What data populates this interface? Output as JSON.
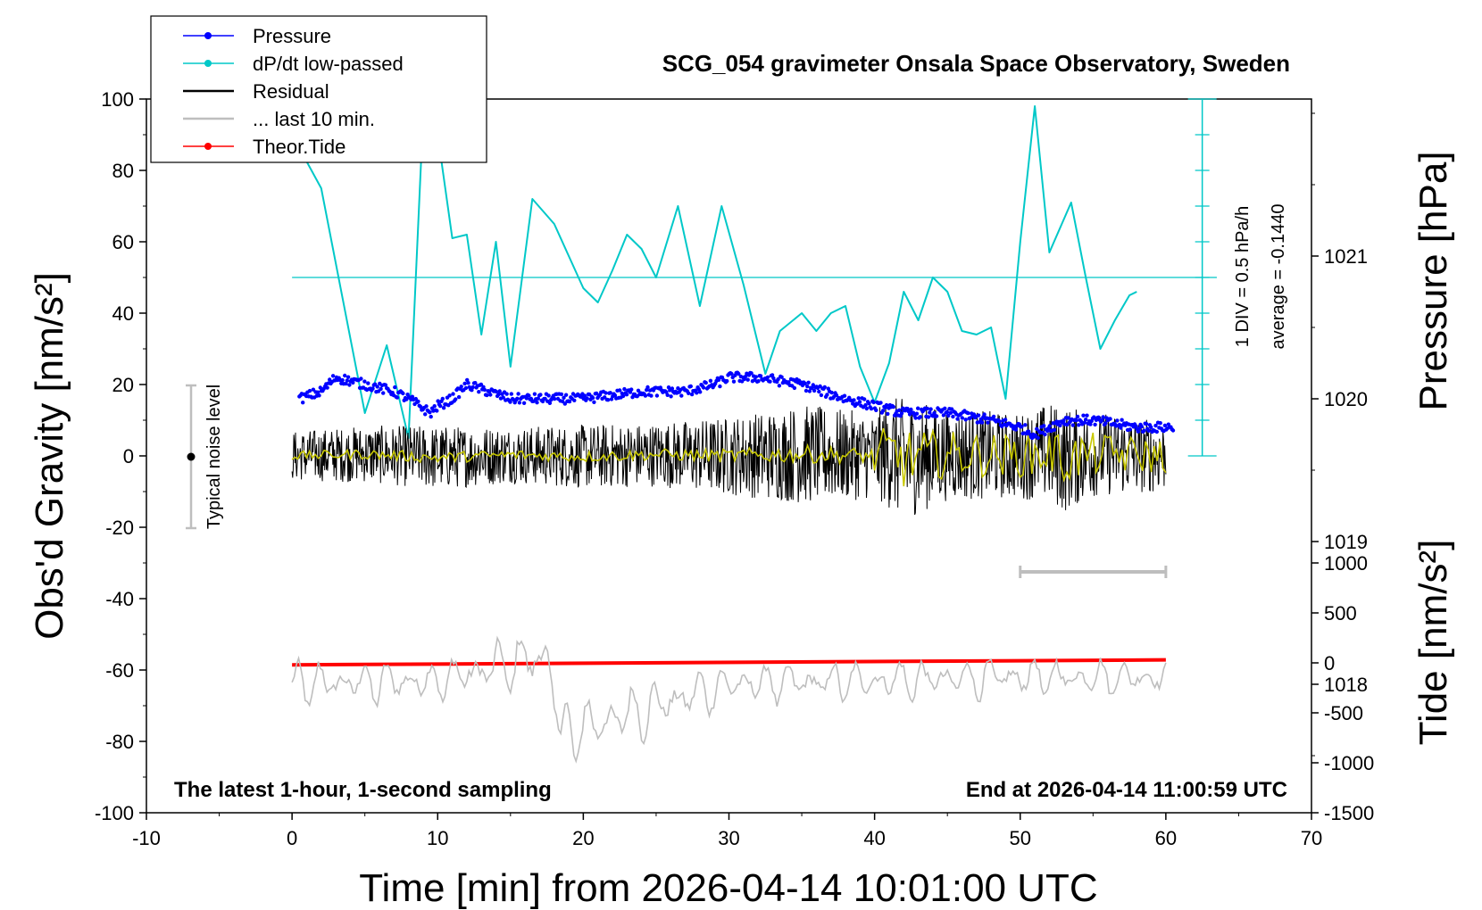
{
  "chart_data": {
    "type": "line",
    "title": "SCG_054 gravimeter Onsala Space Observatory, Sweden",
    "xlabel": "Time [min] from 2026-04-14 10:01:00 UTC",
    "ylabel_left": "Obs'd Gravity [nm/s²]",
    "ylabel_right_pressure": "Pressure [hPa]",
    "ylabel_right_tide": "Tide [nm/s²]",
    "xlim": [
      -10,
      70
    ],
    "ylim_left": [
      -100,
      100
    ],
    "pressure_range_hpa": [
      1017.1,
      1022.1
    ],
    "tide_range": [
      -1500,
      1500
    ],
    "x_ticks": [
      "-10",
      "0",
      "10",
      "20",
      "30",
      "40",
      "50",
      "60",
      "70"
    ],
    "y_ticks_left": [
      "-100",
      "-80",
      "-60",
      "-40",
      "-20",
      "0",
      "20",
      "40",
      "60",
      "80",
      "100"
    ],
    "y_ticks_pressure": [
      "1018",
      "1019",
      "1020",
      "1021"
    ],
    "y_ticks_tide": [
      "-1500",
      "-1000",
      "-500",
      "0",
      "500",
      "1000"
    ],
    "dpdt_scale_label": "1 DIV = 0.5 hPa/h",
    "dpdt_average_label": "average = -0.1440",
    "noise_label": "Typical noise level",
    "footer_left": "The latest 1-hour, 1-second sampling",
    "footer_right": "End at 2026-04-14 11:00:59 UTC",
    "legend": [
      {
        "label": "Pressure",
        "color": "#0000ff",
        "marker": "dot"
      },
      {
        "label": "dP/dt low-passed",
        "color": "#00c8c8",
        "marker": "dot"
      },
      {
        "label": "Residual",
        "color": "#000000",
        "marker": "line"
      },
      {
        "label": "... last 10 min.",
        "color": "#bebebe",
        "marker": "line"
      },
      {
        "label": "Theor.Tide",
        "color": "#ff0000",
        "marker": "dot"
      }
    ],
    "last10_bar_x": [
      50,
      60
    ],
    "series": [
      {
        "name": "Pressure",
        "axis": "pressure_hpa",
        "x": [
          0.5,
          2,
          3,
          5,
          7,
          8,
          9.5,
          10,
          11,
          12,
          15,
          18,
          20,
          24,
          27,
          29,
          30,
          32,
          35,
          38,
          40,
          42,
          45,
          48,
          50,
          51,
          53,
          55,
          58,
          60.5
        ],
        "y": [
          1020.0,
          1020.05,
          1020.15,
          1020.1,
          1020.05,
          1020.0,
          1019.9,
          1019.95,
          1020.0,
          1020.1,
          1020.0,
          1020.0,
          1020.0,
          1020.05,
          1020.05,
          1020.1,
          1020.15,
          1020.15,
          1020.1,
          1020.0,
          1019.95,
          1019.9,
          1019.9,
          1019.85,
          1019.8,
          1019.75,
          1019.85,
          1019.85,
          1019.8,
          1019.8
        ]
      },
      {
        "name": "dP/dt low-passed",
        "axis": "left",
        "x": [
          0,
          2,
          5,
          6.5,
          8,
          9,
          10,
          11,
          12,
          13,
          14,
          15,
          16.5,
          18,
          19,
          20,
          21,
          22,
          23,
          24,
          25,
          26.5,
          28,
          29.5,
          31,
          32.5,
          33.5,
          35,
          36,
          37,
          38,
          39,
          40,
          41,
          42,
          43,
          44,
          45,
          46,
          47,
          48,
          49,
          50,
          51,
          52,
          53.5,
          54.5,
          55.5,
          56.5,
          57.5,
          58
        ],
        "y": [
          90,
          75,
          12,
          31,
          5,
          95,
          90,
          61,
          62,
          34,
          60,
          25,
          72,
          65,
          56,
          47,
          43,
          52,
          62,
          58,
          50,
          70,
          42,
          70,
          48,
          23,
          35,
          40,
          35,
          40,
          42,
          25,
          15,
          26,
          46,
          38,
          50,
          46,
          35,
          34,
          36,
          16,
          60,
          98,
          57,
          71,
          50,
          30,
          38,
          45,
          46
        ]
      },
      {
        "name": "Residual",
        "axis": "left",
        "x": [
          0,
          5,
          10,
          15,
          20,
          25,
          30,
          35,
          40,
          41,
          42,
          45,
          50,
          52,
          53,
          55,
          60
        ],
        "y": [
          0,
          0.5,
          -0.5,
          0.3,
          -0.2,
          0.4,
          0,
          0.5,
          0,
          1,
          -1,
          0.5,
          0,
          1,
          -1,
          0.5,
          0
        ],
        "amplitude": [
          7,
          8,
          9,
          8,
          9,
          9,
          11,
          14,
          12,
          16,
          17,
          13,
          12,
          14,
          15,
          12,
          10
        ]
      },
      {
        "name": "... last 10 min.",
        "axis": "left",
        "x": [
          0,
          10,
          17.5,
          18.5,
          30,
          40,
          50,
          60
        ],
        "y": [
          -64,
          -63,
          -56,
          -78,
          -64,
          -63,
          -62,
          -62
        ],
        "amplitude": [
          7,
          6,
          10,
          10,
          6,
          6,
          6,
          5
        ]
      },
      {
        "name": "Theor.Tide",
        "axis": "tide",
        "x": [
          0,
          60
        ],
        "y": [
          -20,
          30
        ]
      }
    ]
  }
}
